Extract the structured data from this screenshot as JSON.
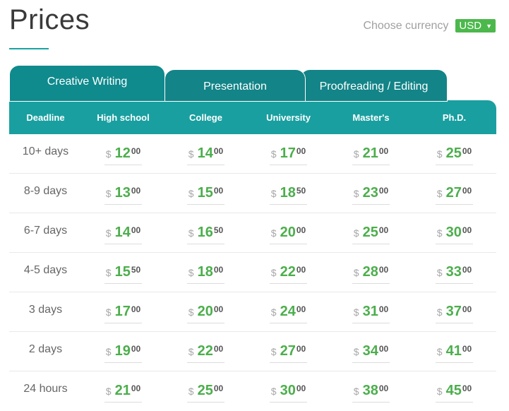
{
  "header": {
    "title": "Prices",
    "currency_label": "Choose currency",
    "currency_value": "USD",
    "caret": "▼"
  },
  "tabs": [
    {
      "label": "Creative Writing",
      "active": true
    },
    {
      "label": "Presentation",
      "active": false
    },
    {
      "label": "Proofreading / Editing",
      "active": false
    }
  ],
  "table": {
    "currency_symbol": "$",
    "columns": [
      "Deadline",
      "High school",
      "College",
      "University",
      "Master's",
      "Ph.D."
    ],
    "rows": [
      {
        "deadline": "10+ days",
        "prices": [
          [
            "12",
            "00"
          ],
          [
            "14",
            "00"
          ],
          [
            "17",
            "00"
          ],
          [
            "21",
            "00"
          ],
          [
            "25",
            "00"
          ]
        ]
      },
      {
        "deadline": "8-9 days",
        "prices": [
          [
            "13",
            "00"
          ],
          [
            "15",
            "00"
          ],
          [
            "18",
            "50"
          ],
          [
            "23",
            "00"
          ],
          [
            "27",
            "00"
          ]
        ]
      },
      {
        "deadline": "6-7 days",
        "prices": [
          [
            "14",
            "00"
          ],
          [
            "16",
            "50"
          ],
          [
            "20",
            "00"
          ],
          [
            "25",
            "00"
          ],
          [
            "30",
            "00"
          ]
        ]
      },
      {
        "deadline": "4-5 days",
        "prices": [
          [
            "15",
            "50"
          ],
          [
            "18",
            "00"
          ],
          [
            "22",
            "00"
          ],
          [
            "28",
            "00"
          ],
          [
            "33",
            "00"
          ]
        ]
      },
      {
        "deadline": "3 days",
        "prices": [
          [
            "17",
            "00"
          ],
          [
            "20",
            "00"
          ],
          [
            "24",
            "00"
          ],
          [
            "31",
            "00"
          ],
          [
            "37",
            "00"
          ]
        ]
      },
      {
        "deadline": "2 days",
        "prices": [
          [
            "19",
            "00"
          ],
          [
            "22",
            "00"
          ],
          [
            "27",
            "00"
          ],
          [
            "34",
            "00"
          ],
          [
            "41",
            "00"
          ]
        ]
      },
      {
        "deadline": "24 hours",
        "prices": [
          [
            "21",
            "00"
          ],
          [
            "25",
            "00"
          ],
          [
            "30",
            "00"
          ],
          [
            "38",
            "00"
          ],
          [
            "45",
            "00"
          ]
        ]
      }
    ]
  },
  "colors": {
    "accent_teal": "#1a9fa0",
    "tab_teal": "#0f8a8d",
    "price_green": "#4cae4c",
    "currency_green": "#4cb84c"
  }
}
